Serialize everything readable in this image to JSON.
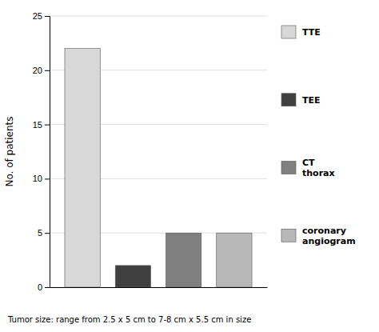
{
  "chart_data": {
    "type": "bar",
    "categories": [
      "TTE",
      "TEE",
      "CT\nthorax",
      "coronary\nangiogram"
    ],
    "values": [
      22,
      2,
      5,
      5
    ],
    "colors": [
      "#d8d8d8",
      "#404040",
      "#808080",
      "#b8b8b8"
    ],
    "ylabel": "No. of patients",
    "ylim": [
      0,
      25
    ],
    "yticks": [
      0,
      5,
      10,
      15,
      20,
      25
    ],
    "grid": true,
    "legend": "right",
    "tick_labels": "y",
    "annotations": [
      "Tumor size: range from 2.5 x 5 cm to 7-8 cm x 5.5 cm in size"
    ]
  }
}
